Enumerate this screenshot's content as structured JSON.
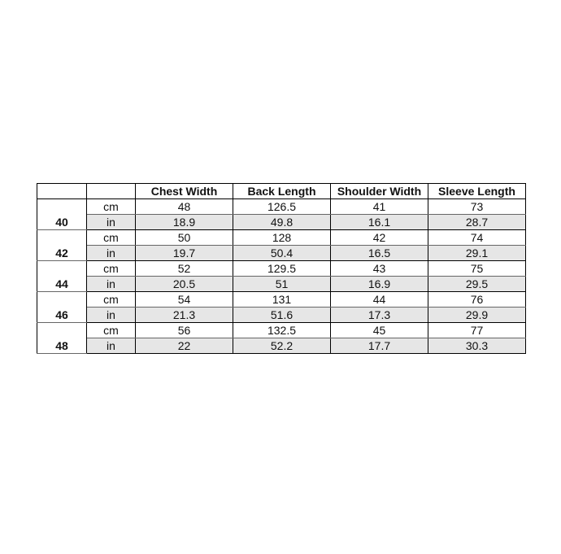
{
  "headers": [
    "",
    "",
    "Chest Width",
    "Back Length",
    "Shoulder Width",
    "Sleeve Length"
  ],
  "sizes": [
    {
      "size": "40",
      "cm": [
        "48",
        "126.5",
        "41",
        "73"
      ],
      "in": [
        "18.9",
        "49.8",
        "16.1",
        "28.7"
      ]
    },
    {
      "size": "42",
      "cm": [
        "50",
        "128",
        "42",
        "74"
      ],
      "in": [
        "19.7",
        "50.4",
        "16.5",
        "29.1"
      ]
    },
    {
      "size": "44",
      "cm": [
        "52",
        "129.5",
        "43",
        "75"
      ],
      "in": [
        "20.5",
        "51",
        "16.9",
        "29.5"
      ]
    },
    {
      "size": "46",
      "cm": [
        "54",
        "131",
        "44",
        "76"
      ],
      "in": [
        "21.3",
        "51.6",
        "17.3",
        "29.9"
      ]
    },
    {
      "size": "48",
      "cm": [
        "56",
        "132.5",
        "45",
        "77"
      ],
      "in": [
        "22",
        "52.2",
        "17.7",
        "30.3"
      ]
    }
  ],
  "units": {
    "cm": "cm",
    "in": "in"
  },
  "colors": {
    "in_row_bg": "#e6e6e6"
  }
}
